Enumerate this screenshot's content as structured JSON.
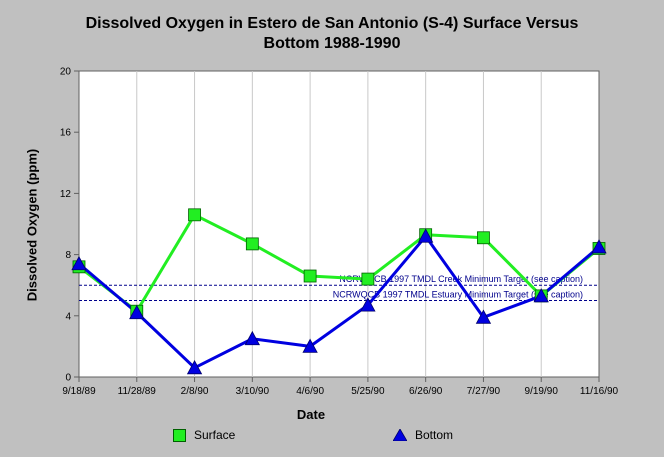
{
  "chart_data": {
    "type": "line",
    "title": "Dissolved Oxygen in Estero de San Antonio (S-4) Surface Versus\nBottom 1988-1990",
    "xlabel": "Date",
    "ylabel": "Dissolved Oxygen (ppm)",
    "categories": [
      "9/18/89",
      "11/28/89",
      "2/8/90",
      "3/10/90",
      "4/6/90",
      "5/25/90",
      "6/26/90",
      "7/27/90",
      "9/19/90",
      "11/16/90"
    ],
    "ylim": [
      0,
      20
    ],
    "yticks": [
      "0",
      "4",
      "8",
      "12",
      "16",
      "20"
    ],
    "grid": "vertical",
    "legend_position": "bottom",
    "series": [
      {
        "name": "Surface",
        "color": "#22ee22",
        "marker": "square",
        "values": [
          7.2,
          4.3,
          10.6,
          8.7,
          6.6,
          6.4,
          9.3,
          9.1,
          5.3,
          8.4
        ]
      },
      {
        "name": "Bottom",
        "color": "#0000e0",
        "marker": "triangle",
        "values": [
          7.4,
          4.2,
          0.6,
          2.5,
          2.0,
          4.7,
          9.2,
          3.9,
          5.3,
          8.5
        ]
      }
    ],
    "reference_lines": [
      {
        "label": "NCRWQCB 1997 TMDL Creek Minimum Target (see caption)",
        "value": 6.0,
        "color": "#00008b"
      },
      {
        "label": "NCRWQCB 1997 TMDL Estuary Minimum Target (see caption)",
        "value": 5.0,
        "color": "#00008b"
      }
    ]
  }
}
